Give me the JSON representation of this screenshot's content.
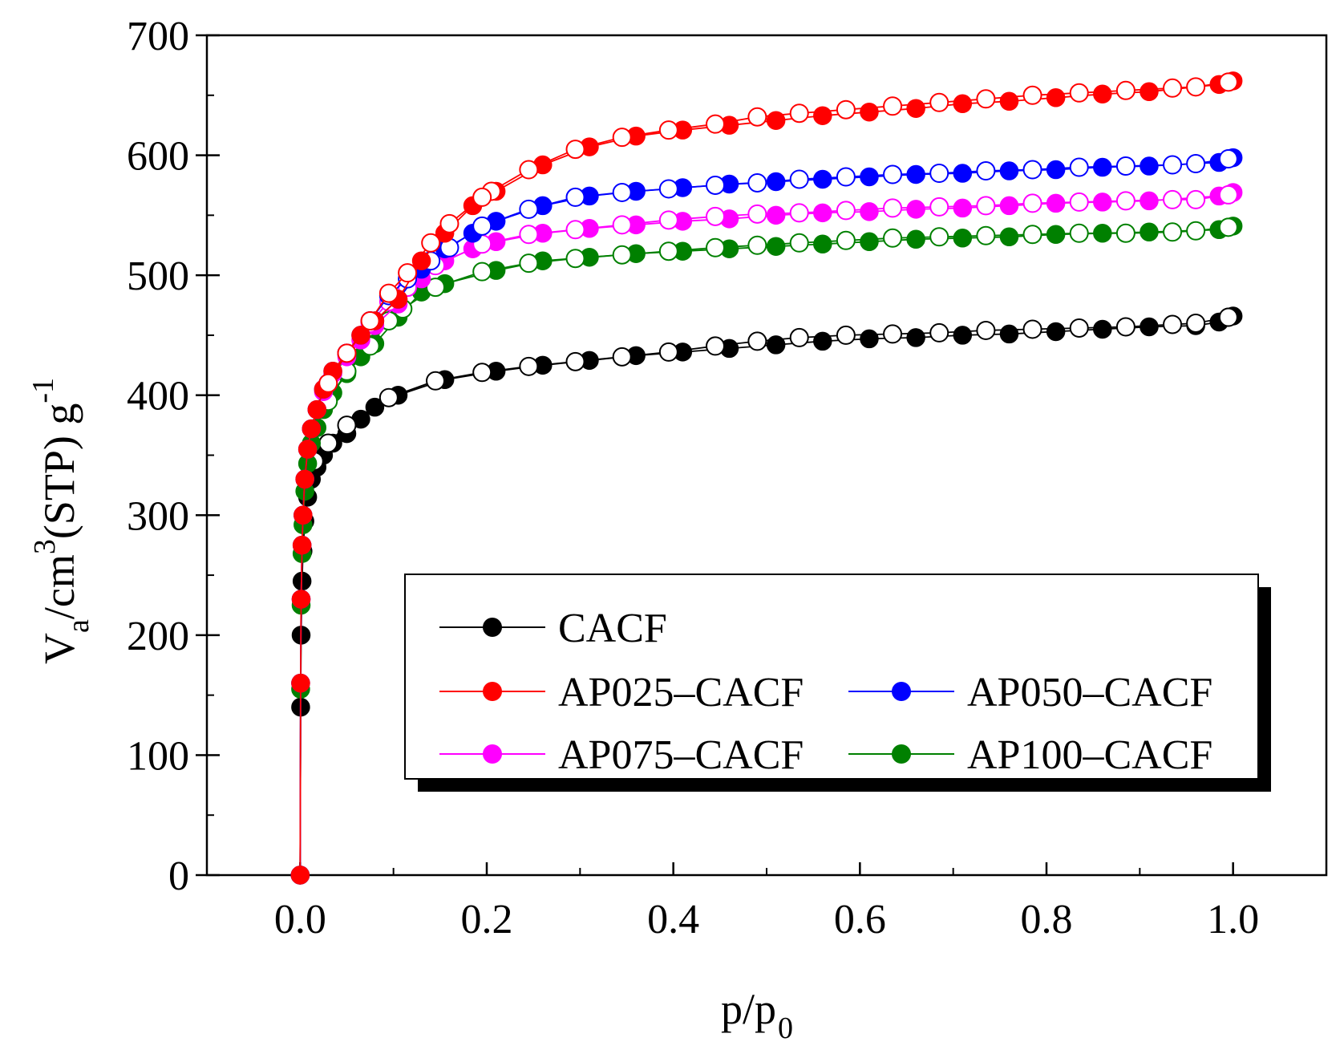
{
  "chart_data": {
    "type": "scatter",
    "xlabel": "p/p",
    "xlabel_sub": "0",
    "ylabel": {
      "main": "V",
      "sub": "a",
      "unit": "/cm",
      "sup": "3",
      "rest": "(STP) g",
      "sup2": "-1"
    },
    "xlim": [
      -0.1,
      1.1
    ],
    "ylim": [
      0,
      700
    ],
    "xticks": [
      0.0,
      0.2,
      0.4,
      0.6,
      0.8,
      1.0
    ],
    "xtick_labels": [
      "0.0",
      "0.2",
      "0.4",
      "0.6",
      "0.8",
      "1.0"
    ],
    "yticks": [
      0,
      100,
      200,
      300,
      400,
      500,
      600,
      700
    ],
    "ytick_labels": [
      "0",
      "100",
      "200",
      "300",
      "400",
      "500",
      "600",
      "700"
    ],
    "grid": false,
    "legend_position": "lower-right",
    "markers": "filled = adsorption, open = desorption",
    "series": [
      {
        "name": "CACF",
        "color": "#000000",
        "adsorption": {
          "x": [
            0.0,
            0.0005,
            0.001,
            0.002,
            0.003,
            0.005,
            0.008,
            0.012,
            0.018,
            0.025,
            0.035,
            0.05,
            0.065,
            0.08,
            0.105,
            0.155,
            0.21,
            0.26,
            0.31,
            0.36,
            0.41,
            0.46,
            0.51,
            0.56,
            0.61,
            0.66,
            0.71,
            0.76,
            0.81,
            0.86,
            0.91,
            0.96,
            0.985,
            1.0
          ],
          "y": [
            0,
            140,
            200,
            245,
            270,
            295,
            315,
            330,
            340,
            350,
            360,
            368,
            380,
            390,
            400,
            413,
            420,
            425,
            429,
            433,
            436,
            439,
            442,
            445,
            447,
            448,
            450,
            451,
            453,
            455,
            457,
            458,
            461,
            466
          ]
        },
        "desorption": {
          "x": [
            0.995,
            0.96,
            0.935,
            0.885,
            0.835,
            0.785,
            0.735,
            0.685,
            0.635,
            0.585,
            0.535,
            0.49,
            0.445,
            0.395,
            0.345,
            0.295,
            0.245,
            0.195,
            0.145,
            0.095,
            0.05,
            0.03,
            0.015
          ],
          "y": [
            465,
            460,
            459,
            457,
            456,
            455,
            454,
            452,
            451,
            450,
            448,
            445,
            441,
            436,
            432,
            428,
            424,
            419,
            412,
            398,
            375,
            360,
            345
          ]
        }
      },
      {
        "name": "AP025–CACF",
        "color": "#ff0000",
        "adsorption": {
          "x": [
            0.0,
            0.0005,
            0.001,
            0.002,
            0.003,
            0.005,
            0.008,
            0.012,
            0.018,
            0.025,
            0.035,
            0.05,
            0.065,
            0.08,
            0.105,
            0.13,
            0.155,
            0.185,
            0.21,
            0.26,
            0.31,
            0.36,
            0.41,
            0.46,
            0.51,
            0.56,
            0.61,
            0.66,
            0.71,
            0.76,
            0.81,
            0.86,
            0.91,
            0.985,
            1.0
          ],
          "y": [
            0,
            160,
            230,
            275,
            300,
            330,
            355,
            372,
            388,
            405,
            420,
            435,
            450,
            462,
            480,
            512,
            535,
            558,
            570,
            592,
            607,
            616,
            621,
            625,
            629,
            633,
            636,
            639,
            643,
            645,
            648,
            651,
            653,
            659,
            662
          ]
        },
        "desorption": {
          "x": [
            0.995,
            0.96,
            0.935,
            0.885,
            0.835,
            0.785,
            0.735,
            0.685,
            0.635,
            0.585,
            0.535,
            0.49,
            0.445,
            0.395,
            0.345,
            0.295,
            0.245,
            0.205,
            0.195,
            0.16,
            0.14,
            0.115,
            0.095,
            0.075,
            0.05,
            0.03
          ],
          "y": [
            661,
            657,
            656,
            654,
            652,
            650,
            647,
            644,
            641,
            638,
            635,
            632,
            626,
            621,
            615,
            605,
            588,
            570,
            565,
            543,
            527,
            502,
            485,
            462,
            435,
            410
          ]
        }
      },
      {
        "name": "AP050–CACF",
        "color": "#0000ff",
        "adsorption": {
          "x": [
            0.0,
            0.0005,
            0.001,
            0.002,
            0.003,
            0.005,
            0.008,
            0.012,
            0.018,
            0.025,
            0.035,
            0.05,
            0.065,
            0.08,
            0.105,
            0.13,
            0.155,
            0.185,
            0.21,
            0.26,
            0.31,
            0.36,
            0.41,
            0.46,
            0.51,
            0.56,
            0.61,
            0.66,
            0.71,
            0.76,
            0.81,
            0.86,
            0.91,
            0.985,
            1.0
          ],
          "y": [
            0,
            160,
            230,
            275,
            300,
            330,
            355,
            372,
            388,
            405,
            420,
            435,
            450,
            462,
            480,
            505,
            522,
            535,
            545,
            558,
            566,
            570,
            573,
            576,
            578,
            580,
            582,
            584,
            585,
            587,
            588,
            590,
            591,
            594,
            598
          ]
        },
        "desorption": {
          "x": [
            0.995,
            0.96,
            0.935,
            0.885,
            0.835,
            0.785,
            0.735,
            0.685,
            0.635,
            0.585,
            0.535,
            0.49,
            0.445,
            0.395,
            0.345,
            0.295,
            0.245,
            0.195,
            0.16,
            0.14,
            0.115,
            0.095,
            0.075,
            0.05,
            0.03
          ],
          "y": [
            597,
            593,
            592,
            591,
            590,
            588,
            587,
            585,
            584,
            582,
            580,
            577,
            575,
            572,
            569,
            565,
            555,
            541,
            523,
            512,
            497,
            483,
            462,
            435,
            410
          ]
        }
      },
      {
        "name": "AP075–CACF",
        "color": "#ff00ff",
        "adsorption": {
          "x": [
            0.0,
            0.0005,
            0.001,
            0.002,
            0.003,
            0.005,
            0.008,
            0.012,
            0.018,
            0.025,
            0.035,
            0.05,
            0.065,
            0.08,
            0.105,
            0.13,
            0.155,
            0.185,
            0.21,
            0.26,
            0.31,
            0.36,
            0.41,
            0.46,
            0.51,
            0.56,
            0.61,
            0.66,
            0.71,
            0.76,
            0.81,
            0.86,
            0.91,
            0.985,
            1.0
          ],
          "y": [
            0,
            160,
            230,
            275,
            300,
            330,
            355,
            372,
            388,
            403,
            418,
            432,
            446,
            458,
            476,
            497,
            512,
            522,
            528,
            535,
            539,
            542,
            545,
            547,
            550,
            552,
            553,
            555,
            556,
            558,
            560,
            561,
            562,
            566,
            569
          ]
        },
        "desorption": {
          "x": [
            0.995,
            0.96,
            0.935,
            0.885,
            0.835,
            0.785,
            0.735,
            0.685,
            0.635,
            0.585,
            0.535,
            0.49,
            0.445,
            0.395,
            0.345,
            0.295,
            0.245,
            0.195,
            0.145,
            0.115,
            0.095,
            0.075,
            0.05,
            0.03
          ],
          "y": [
            567,
            563,
            563,
            562,
            561,
            560,
            558,
            557,
            556,
            554,
            552,
            551,
            549,
            546,
            542,
            538,
            534,
            526,
            508,
            490,
            478,
            460,
            435,
            410
          ]
        }
      },
      {
        "name": "AP100–CACF",
        "color": "#008000",
        "adsorption": {
          "x": [
            0.0,
            0.0005,
            0.001,
            0.002,
            0.003,
            0.005,
            0.008,
            0.012,
            0.018,
            0.025,
            0.035,
            0.05,
            0.065,
            0.08,
            0.105,
            0.13,
            0.155,
            0.21,
            0.26,
            0.31,
            0.36,
            0.41,
            0.46,
            0.51,
            0.56,
            0.61,
            0.66,
            0.71,
            0.76,
            0.81,
            0.86,
            0.91,
            0.985,
            1.0
          ],
          "y": [
            0,
            155,
            225,
            268,
            292,
            320,
            343,
            360,
            373,
            388,
            402,
            418,
            432,
            443,
            465,
            486,
            493,
            504,
            512,
            515,
            518,
            520,
            522,
            524,
            526,
            528,
            530,
            531,
            532,
            534,
            535,
            536,
            538,
            541
          ]
        },
        "desorption": {
          "x": [
            0.995,
            0.96,
            0.935,
            0.885,
            0.835,
            0.785,
            0.735,
            0.685,
            0.635,
            0.585,
            0.535,
            0.49,
            0.445,
            0.395,
            0.345,
            0.295,
            0.245,
            0.195,
            0.145,
            0.11,
            0.095,
            0.075,
            0.05,
            0.03
          ],
          "y": [
            540,
            537,
            536,
            535,
            535,
            534,
            533,
            532,
            531,
            529,
            527,
            525,
            523,
            520,
            517,
            514,
            510,
            503,
            490,
            472,
            462,
            441,
            420,
            395
          ]
        }
      }
    ]
  }
}
